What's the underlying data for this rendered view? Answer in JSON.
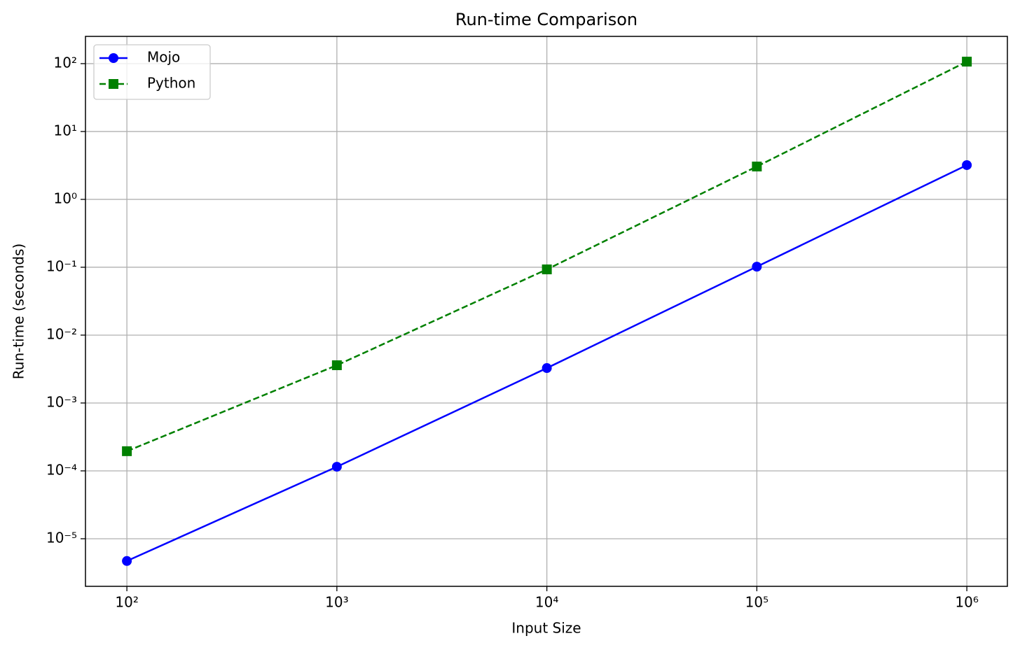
{
  "chart_data": {
    "type": "line",
    "title": "Run-time Comparison",
    "x_label": "Input Size",
    "y_label": "Run-time (seconds)",
    "x": [
      100,
      1000,
      10000,
      100000,
      1000000
    ],
    "series": [
      {
        "name": "Mojo",
        "color": "#0000ff",
        "linestyle": "solid",
        "marker": "circle",
        "values": [
          4.7e-06,
          0.000115,
          0.00327,
          0.102,
          3.2
        ]
      },
      {
        "name": "Python",
        "color": "#008000",
        "linestyle": "dashed",
        "marker": "square",
        "values": [
          0.000195,
          0.0036,
          0.093,
          3.05,
          107
        ]
      }
    ],
    "xscale": "log",
    "yscale": "log",
    "xlim": [
      63.5,
      1560000
    ],
    "ylim": [
      1.99e-06,
      252
    ],
    "xticks": [
      {
        "value": 100,
        "label": "10²"
      },
      {
        "value": 1000,
        "label": "10³"
      },
      {
        "value": 10000,
        "label": "10⁴"
      },
      {
        "value": 100000,
        "label": "10⁵"
      },
      {
        "value": 1000000,
        "label": "10⁶"
      }
    ],
    "yticks": [
      {
        "value": 1e-05,
        "label": "10⁻⁵"
      },
      {
        "value": 0.0001,
        "label": "10⁻⁴"
      },
      {
        "value": 0.001,
        "label": "10⁻³"
      },
      {
        "value": 0.01,
        "label": "10⁻²"
      },
      {
        "value": 0.1,
        "label": "10⁻¹"
      },
      {
        "value": 1,
        "label": "10⁰"
      },
      {
        "value": 10,
        "label": "10¹"
      },
      {
        "value": 100,
        "label": "10²"
      }
    ],
    "grid": true,
    "legend": "upper left"
  }
}
